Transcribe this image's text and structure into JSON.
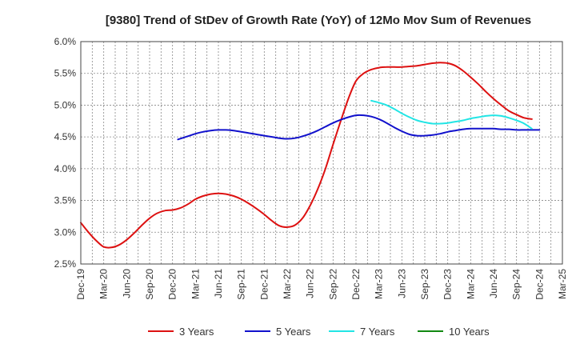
{
  "chart_data": {
    "type": "line",
    "title": "[9380]  Trend of StDev of Growth Rate (YoY) of 12Mo Mov Sum of Revenues",
    "xlabel": "",
    "ylabel": "",
    "ylim": [
      2.5,
      6.0
    ],
    "y_ticks": [
      2.5,
      3.0,
      3.5,
      4.0,
      4.5,
      5.0,
      5.5,
      6.0
    ],
    "y_tick_labels": [
      "2.5%",
      "3.0%",
      "3.5%",
      "4.0%",
      "4.5%",
      "5.0%",
      "5.5%",
      "6.0%"
    ],
    "x_tick_labels": [
      "Dec-19",
      "Mar-20",
      "Jun-20",
      "Sep-20",
      "Dec-20",
      "Mar-21",
      "Jun-21",
      "Sep-21",
      "Dec-21",
      "Mar-22",
      "Jun-22",
      "Sep-22",
      "Dec-22",
      "Mar-23",
      "Jun-23",
      "Sep-23",
      "Dec-23",
      "Mar-24",
      "Jun-24",
      "Sep-24",
      "Dec-24",
      "Mar-25"
    ],
    "grid": true,
    "legend_position": "bottom",
    "series": [
      {
        "name": "3 Years",
        "color": "#dd1111",
        "points": [
          [
            0,
            3.15
          ],
          [
            1,
            3.0
          ],
          [
            2,
            2.87
          ],
          [
            3,
            2.77
          ],
          [
            4,
            2.76
          ],
          [
            5,
            2.8
          ],
          [
            6,
            2.88
          ],
          [
            7,
            2.99
          ],
          [
            8,
            3.11
          ],
          [
            9,
            3.22
          ],
          [
            10,
            3.3
          ],
          [
            11,
            3.34
          ],
          [
            12,
            3.35
          ],
          [
            13,
            3.38
          ],
          [
            14,
            3.44
          ],
          [
            15,
            3.52
          ],
          [
            16,
            3.57
          ],
          [
            17,
            3.6
          ],
          [
            18,
            3.61
          ],
          [
            19,
            3.6
          ],
          [
            20,
            3.57
          ],
          [
            21,
            3.52
          ],
          [
            22,
            3.45
          ],
          [
            23,
            3.37
          ],
          [
            24,
            3.28
          ],
          [
            25,
            3.18
          ],
          [
            26,
            3.1
          ],
          [
            27,
            3.08
          ],
          [
            28,
            3.11
          ],
          [
            29,
            3.22
          ],
          [
            30,
            3.42
          ],
          [
            31,
            3.68
          ],
          [
            32,
            4.0
          ],
          [
            33,
            4.38
          ],
          [
            34,
            4.75
          ],
          [
            35,
            5.1
          ],
          [
            36,
            5.38
          ],
          [
            37,
            5.5
          ],
          [
            38,
            5.56
          ],
          [
            39,
            5.59
          ],
          [
            40,
            5.6
          ],
          [
            41,
            5.6
          ],
          [
            42,
            5.6
          ],
          [
            43,
            5.61
          ],
          [
            44,
            5.62
          ],
          [
            45,
            5.64
          ],
          [
            46,
            5.66
          ],
          [
            47,
            5.67
          ],
          [
            48,
            5.66
          ],
          [
            49,
            5.62
          ],
          [
            50,
            5.54
          ],
          [
            51,
            5.44
          ],
          [
            52,
            5.33
          ],
          [
            53,
            5.21
          ],
          [
            54,
            5.1
          ],
          [
            55,
            5.0
          ],
          [
            56,
            4.91
          ],
          [
            57,
            4.85
          ],
          [
            58,
            4.8
          ],
          [
            59,
            4.78
          ]
        ]
      },
      {
        "name": "5 Years",
        "color": "#1111cc",
        "points": [
          [
            12.7,
            4.46
          ],
          [
            14,
            4.51
          ],
          [
            15,
            4.55
          ],
          [
            16,
            4.58
          ],
          [
            17,
            4.6
          ],
          [
            18,
            4.61
          ],
          [
            19,
            4.61
          ],
          [
            20,
            4.6
          ],
          [
            21,
            4.58
          ],
          [
            22,
            4.56
          ],
          [
            23,
            4.54
          ],
          [
            24,
            4.52
          ],
          [
            25,
            4.5
          ],
          [
            26,
            4.48
          ],
          [
            27,
            4.47
          ],
          [
            28,
            4.48
          ],
          [
            29,
            4.51
          ],
          [
            30,
            4.55
          ],
          [
            31,
            4.6
          ],
          [
            32,
            4.66
          ],
          [
            33,
            4.72
          ],
          [
            34,
            4.77
          ],
          [
            35,
            4.81
          ],
          [
            36,
            4.84
          ],
          [
            37,
            4.84
          ],
          [
            38,
            4.82
          ],
          [
            39,
            4.78
          ],
          [
            40,
            4.72
          ],
          [
            41,
            4.65
          ],
          [
            42,
            4.59
          ],
          [
            43,
            4.54
          ],
          [
            44,
            4.52
          ],
          [
            45,
            4.52
          ],
          [
            46,
            4.53
          ],
          [
            47,
            4.55
          ],
          [
            48,
            4.58
          ],
          [
            49,
            4.6
          ],
          [
            50,
            4.62
          ],
          [
            51,
            4.63
          ],
          [
            52,
            4.63
          ],
          [
            53,
            4.63
          ],
          [
            54,
            4.63
          ],
          [
            55,
            4.62
          ],
          [
            56,
            4.62
          ],
          [
            57,
            4.61
          ],
          [
            58,
            4.61
          ],
          [
            59,
            4.61
          ],
          [
            60,
            4.61
          ]
        ]
      },
      {
        "name": "7 Years",
        "color": "#22e5e5",
        "points": [
          [
            38,
            5.07
          ],
          [
            39,
            5.04
          ],
          [
            40,
            5.0
          ],
          [
            41,
            4.94
          ],
          [
            42,
            4.87
          ],
          [
            43,
            4.81
          ],
          [
            44,
            4.76
          ],
          [
            45,
            4.73
          ],
          [
            46,
            4.71
          ],
          [
            47,
            4.71
          ],
          [
            48,
            4.72
          ],
          [
            49,
            4.74
          ],
          [
            50,
            4.76
          ],
          [
            51,
            4.79
          ],
          [
            52,
            4.81
          ],
          [
            53,
            4.83
          ],
          [
            54,
            4.84
          ],
          [
            55,
            4.83
          ],
          [
            56,
            4.8
          ],
          [
            57,
            4.76
          ],
          [
            58,
            4.71
          ],
          [
            59,
            4.63
          ]
        ]
      },
      {
        "name": "10 Years",
        "color": "#118811",
        "points": []
      }
    ]
  }
}
